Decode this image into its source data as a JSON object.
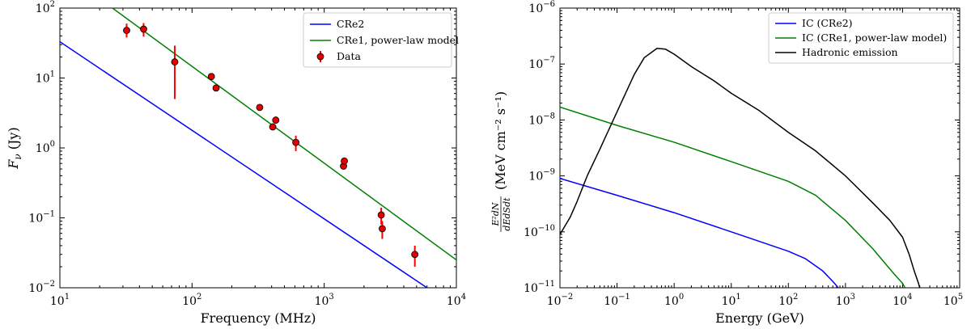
{
  "chart_data": [
    {
      "type": "line",
      "xscale": "log",
      "yscale": "log",
      "xlim": [
        10,
        10000
      ],
      "ylim": [
        0.01,
        100
      ],
      "xlabel": "Frequency (MHz)",
      "ylabel": "F_ν (Jy)",
      "xticks": [
        {
          "value": 10,
          "base": "10",
          "exp": "1"
        },
        {
          "value": 100,
          "base": "10",
          "exp": "2"
        },
        {
          "value": 1000,
          "base": "10",
          "exp": "3"
        },
        {
          "value": 10000,
          "base": "10",
          "exp": "4"
        }
      ],
      "yticks": [
        {
          "value": 0.01,
          "base": "10",
          "exp": "−2"
        },
        {
          "value": 0.1,
          "base": "10",
          "exp": "−1"
        },
        {
          "value": 1,
          "base": "10",
          "exp": "0"
        },
        {
          "value": 10,
          "base": "10",
          "exp": "1"
        },
        {
          "value": 100,
          "base": "10",
          "exp": "2"
        }
      ],
      "series": [
        {
          "name": "CRe2",
          "color": "#0000ff",
          "x": [
            10,
            6000
          ],
          "y": [
            33,
            0.01
          ]
        },
        {
          "name": "CRe1, power-law model",
          "color": "#008000",
          "x": [
            25,
            10000
          ],
          "y": [
            100,
            0.025
          ]
        }
      ],
      "points": {
        "name": "Data",
        "color": "#ff0000",
        "x": [
          32,
          43,
          74,
          140,
          152,
          325,
          408,
          430,
          610,
          1400,
          1420,
          2700,
          2750,
          4850
        ],
        "y": [
          48,
          50,
          17,
          10.5,
          7.2,
          3.8,
          2.0,
          2.5,
          1.2,
          0.55,
          0.65,
          0.11,
          0.07,
          0.03
        ],
        "ylo": [
          38,
          39,
          5,
          10.5,
          7.2,
          3.8,
          2.0,
          2.5,
          0.9,
          0.55,
          0.65,
          0.08,
          0.05,
          0.02
        ],
        "yhi": [
          60,
          61,
          29,
          10.5,
          7.2,
          3.8,
          2.0,
          2.5,
          1.5,
          0.55,
          0.65,
          0.14,
          0.09,
          0.04
        ]
      },
      "legend": {
        "position": "top-right",
        "entries": [
          "CRe2",
          "CRe1, power-law model",
          "Data"
        ]
      }
    },
    {
      "type": "line",
      "xscale": "log",
      "yscale": "log",
      "xlim": [
        0.01,
        100000
      ],
      "ylim": [
        1e-11,
        1e-06
      ],
      "xlabel": "Energy (GeV)",
      "ylabel_main": "(MeV cm⁻² s⁻¹)",
      "ylabel_num": "E²dN",
      "ylabel_den": "dEdSdt",
      "xticks": [
        {
          "value": 0.01,
          "base": "10",
          "exp": "−2"
        },
        {
          "value": 0.1,
          "base": "10",
          "exp": "−1"
        },
        {
          "value": 1,
          "base": "10",
          "exp": "0"
        },
        {
          "value": 10,
          "base": "10",
          "exp": "1"
        },
        {
          "value": 100,
          "base": "10",
          "exp": "2"
        },
        {
          "value": 1000,
          "base": "10",
          "exp": "3"
        },
        {
          "value": 10000,
          "base": "10",
          "exp": "4"
        },
        {
          "value": 100000,
          "base": "10",
          "exp": "5"
        }
      ],
      "yticks": [
        {
          "value": 1e-11,
          "base": "10",
          "exp": "−11"
        },
        {
          "value": 1e-10,
          "base": "10",
          "exp": "−10"
        },
        {
          "value": 1e-09,
          "base": "10",
          "exp": "−9"
        },
        {
          "value": 1e-08,
          "base": "10",
          "exp": "−8"
        },
        {
          "value": 1e-07,
          "base": "10",
          "exp": "−7"
        },
        {
          "value": 1e-06,
          "base": "10",
          "exp": "−6"
        }
      ],
      "series": [
        {
          "name": "IC (CRe2)",
          "color": "#0000ff",
          "x": [
            0.01,
            0.1,
            1,
            10,
            100,
            200,
            400,
            600,
            750
          ],
          "y": [
            9e-10,
            4.5e-10,
            2.2e-10,
            1e-10,
            4.5e-11,
            3.3e-11,
            2e-11,
            1.3e-11,
            1e-11
          ]
        },
        {
          "name": "IC (CRe1, power-law model)",
          "color": "#008000",
          "x": [
            0.01,
            0.1,
            1,
            10,
            100,
            300,
            1000,
            3000,
            7000,
            10000,
            11000
          ],
          "y": [
            1.7e-08,
            8e-09,
            4e-09,
            1.8e-09,
            8e-10,
            4.5e-10,
            1.6e-10,
            5e-11,
            1.8e-11,
            1.2e-11,
            1e-11
          ]
        },
        {
          "name": "Hadronic emission",
          "color": "#000000",
          "x": [
            0.01,
            0.015,
            0.02,
            0.03,
            0.05,
            0.1,
            0.2,
            0.3,
            0.5,
            0.7,
            1,
            2,
            5,
            10,
            30,
            100,
            300,
            1000,
            3000,
            6000,
            10000,
            13000,
            16000,
            19000,
            20000
          ],
          "y": [
            9e-11,
            1.8e-10,
            3.5e-10,
            1e-09,
            3e-09,
            1.4e-08,
            6.5e-08,
            1.3e-07,
            1.9e-07,
            1.85e-07,
            1.5e-07,
            9e-08,
            5e-08,
            3e-08,
            1.5e-08,
            6e-09,
            2.8e-09,
            1e-09,
            3.3e-10,
            1.6e-10,
            8e-11,
            4e-11,
            2e-11,
            1.2e-11,
            1e-11
          ]
        }
      ],
      "legend": {
        "position": "top-right",
        "entries": [
          "IC (CRe2)",
          "IC (CRe1, power-law model)",
          "Hadronic emission"
        ]
      }
    }
  ]
}
